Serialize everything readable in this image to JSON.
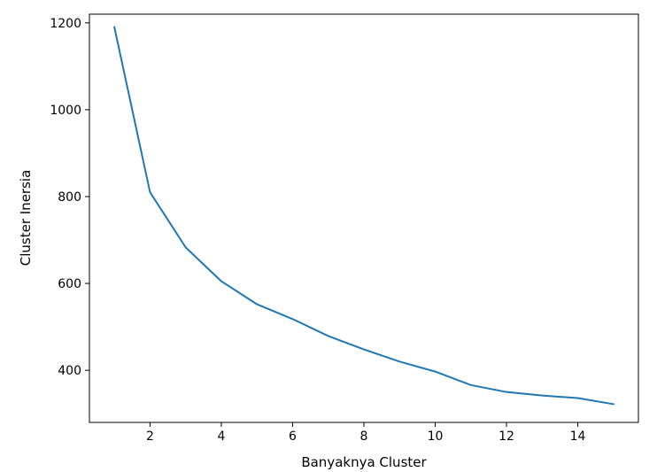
{
  "chart_data": {
    "type": "line",
    "title": "",
    "xlabel": "Banyaknya Cluster",
    "ylabel": "Cluster Inersia",
    "xlim": [
      0.3,
      15.7
    ],
    "ylim": [
      280,
      1220
    ],
    "x_ticks": [
      2,
      4,
      6,
      8,
      10,
      12,
      14
    ],
    "y_ticks": [
      400,
      600,
      800,
      1000,
      1200
    ],
    "grid": false,
    "legend": "none",
    "series": [
      {
        "color": "#1f77b4",
        "x": [
          1,
          2,
          3,
          4,
          5,
          6,
          7,
          8,
          9,
          10,
          11,
          12,
          13,
          14,
          15
        ],
        "y": [
          1190,
          810,
          683,
          605,
          552,
          518,
          479,
          448,
          420,
          397,
          366,
          350,
          342,
          336,
          322
        ]
      }
    ]
  }
}
